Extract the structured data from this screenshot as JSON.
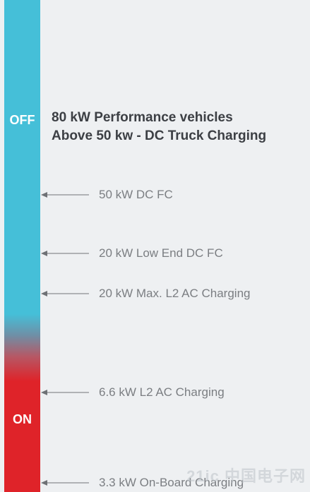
{
  "status_bar": {
    "off_label": "OFF",
    "on_label": "ON"
  },
  "title": {
    "line1": "80 kW Performance vehicles",
    "line2": "Above 50 kw - DC Truck Charging"
  },
  "levels": [
    {
      "label": "50 kW DC FC"
    },
    {
      "label": "20 kW Low End DC FC"
    },
    {
      "label": "20 kW Max. L2 AC Charging"
    },
    {
      "label": "6.6 kW L2 AC Charging"
    },
    {
      "label": "3.3 kW On-Board Charging"
    }
  ],
  "colors": {
    "off": "#45bfd8",
    "on": "#df2329",
    "arrow": "#8a8d91"
  },
  "watermark": "21ic 中国电子网"
}
